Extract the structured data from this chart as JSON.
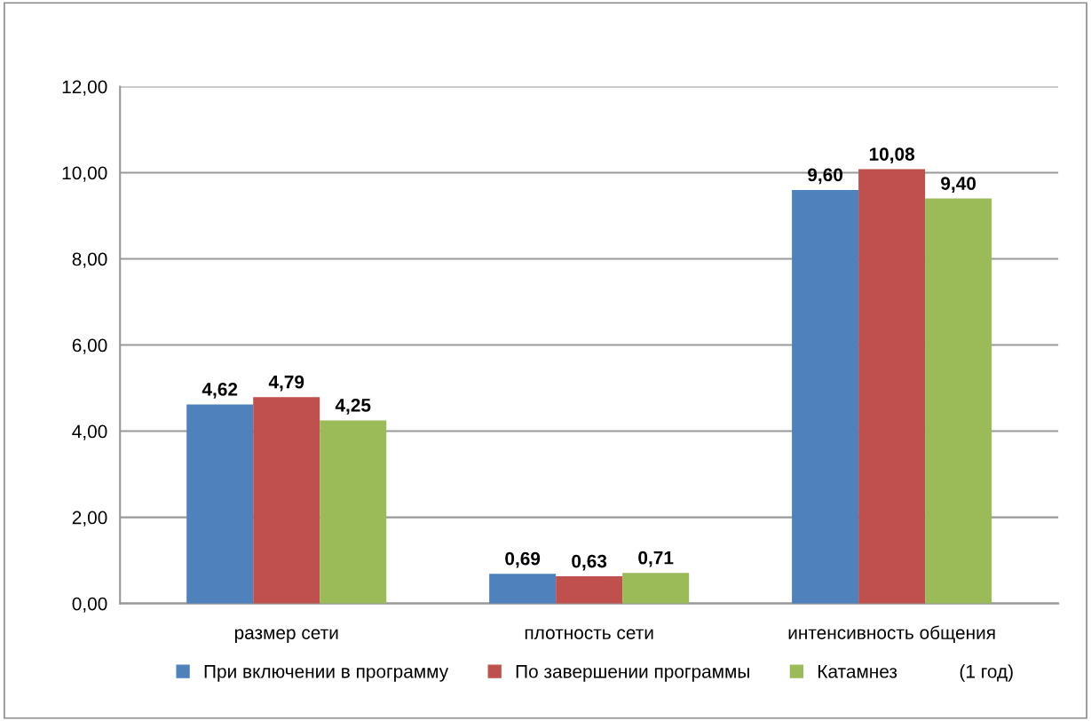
{
  "chart_data": {
    "type": "bar",
    "categories": [
      "размер сети",
      "плотность сети",
      "интенсивность общения"
    ],
    "series": [
      {
        "name": "При включении в программу",
        "color": "#4f81bd",
        "values": [
          4.62,
          0.69,
          9.6
        ],
        "value_labels": [
          "4,62",
          "0,69",
          "9,60"
        ]
      },
      {
        "name": "По завершении программы",
        "color": "#c0504d",
        "values": [
          4.79,
          0.63,
          10.08
        ],
        "value_labels": [
          "4,79",
          "0,63",
          "10,08"
        ]
      },
      {
        "name": "Катамнез            (1 год)",
        "color": "#9bbb59",
        "values": [
          4.25,
          0.71,
          9.4
        ],
        "value_labels": [
          "4,25",
          "0,71",
          "9,40"
        ]
      }
    ],
    "ylim": [
      0,
      12
    ],
    "yticks": [
      {
        "value": 0,
        "label": "0,00"
      },
      {
        "value": 2,
        "label": "2,00"
      },
      {
        "value": 4,
        "label": "4,00"
      },
      {
        "value": 6,
        "label": "6,00"
      },
      {
        "value": 8,
        "label": "8,00"
      },
      {
        "value": 10,
        "label": "10,00"
      },
      {
        "value": 12,
        "label": "12,00"
      }
    ],
    "grid": "y",
    "legend": "bottom"
  }
}
